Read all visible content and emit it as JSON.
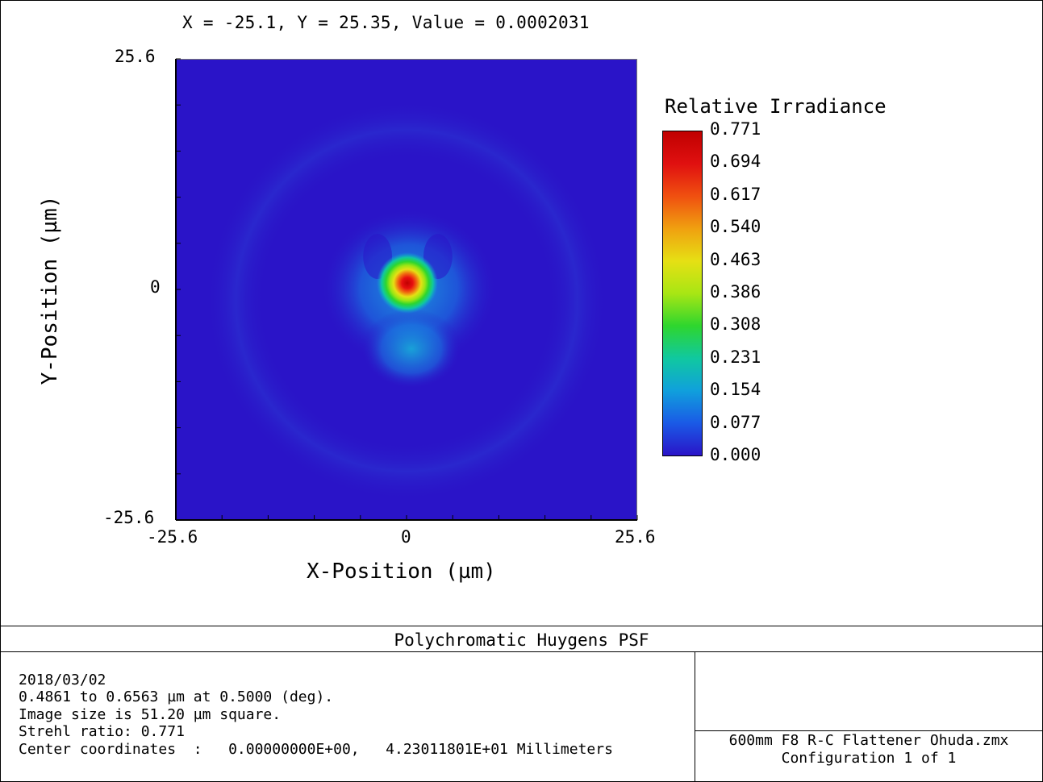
{
  "readout": "X = -25.1, Y = 25.35, Value = 0.0002031",
  "chart_data": {
    "type": "heatmap",
    "title": "Polychromatic Huygens PSF",
    "xlabel": "X-Position (µm)",
    "ylabel": "Y-Position (µm)",
    "xlim": [
      -25.6,
      25.6
    ],
    "ylim": [
      -25.6,
      25.6
    ],
    "x_tick_labels": [
      "-25.6",
      "0",
      "25.6"
    ],
    "y_tick_labels": [
      "25.6",
      "0",
      "-25.6"
    ],
    "colorbar": {
      "title": "Relative Irradiance",
      "min": 0.0,
      "max": 0.771,
      "tick_labels": [
        "0.771",
        "0.694",
        "0.617",
        "0.540",
        "0.463",
        "0.386",
        "0.308",
        "0.231",
        "0.154",
        "0.077",
        "0.000"
      ],
      "colors": [
        "#2a14c8",
        "#1a5ae6",
        "#10a0dc",
        "#10c8a0",
        "#2ed62e",
        "#a8e614",
        "#e6e014",
        "#f0a010",
        "#f05010",
        "#e01010",
        "#c00000"
      ]
    },
    "features": {
      "peak_center": [
        0.0,
        0.5
      ],
      "peak_value": 0.771,
      "background_value": 0.0002031
    }
  },
  "footer": {
    "title": "Polychromatic Huygens PSF",
    "info": [
      "2018/03/02",
      "0.4861 to 0.6563 µm at 0.5000 (deg).",
      "Image size is 51.20 µm square.",
      "Strehl ratio: 0.771",
      "Center coordinates  :   0.00000000E+00,   4.23011801E+01 Millimeters"
    ],
    "file": "600mm F8 R-C Flattener Ohuda.zmx",
    "config": "Configuration 1 of 1"
  }
}
